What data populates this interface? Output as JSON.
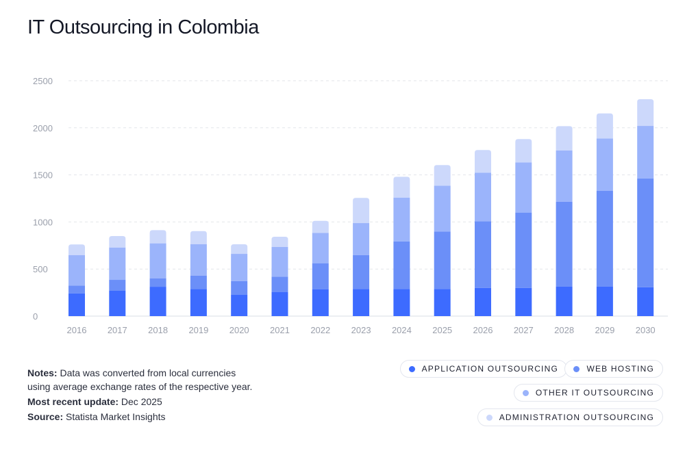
{
  "title": "IT Outsourcing in Colombia",
  "notes": {
    "notes_label": "Notes:",
    "notes_text": " Data was converted from local currencies",
    "notes_text2": "using average exchange rates of the respective year.",
    "update_label": "Most recent update:",
    "update_value": " Dec 2025",
    "source_label": "Source:",
    "source_value": " Statista Market Insights"
  },
  "chart_data": {
    "type": "bar",
    "stacked": true,
    "title": "IT Outsourcing in Colombia",
    "xlabel": "",
    "ylabel": "",
    "ylim": [
      0,
      2500
    ],
    "yticks": [
      0,
      500,
      1000,
      1500,
      2000,
      2500
    ],
    "grid": true,
    "legend_position": "bottom-right",
    "categories": [
      "2016",
      "2017",
      "2018",
      "2019",
      "2020",
      "2021",
      "2022",
      "2023",
      "2024",
      "2025",
      "2026",
      "2027",
      "2028",
      "2029",
      "2030"
    ],
    "series": [
      {
        "name": "APPLICATION OUTSOURCING",
        "color": "#3d6bff",
        "values": [
          242,
          269,
          312,
          288,
          228,
          257,
          286,
          288,
          288,
          288,
          300,
          300,
          315,
          315,
          307
        ]
      },
      {
        "name": "WEB HOSTING",
        "color": "#6b8ff8",
        "values": [
          83,
          116,
          90,
          143,
          143,
          162,
          276,
          361,
          506,
          611,
          708,
          800,
          899,
          1015,
          1156
        ]
      },
      {
        "name": "OTHER IT OUTSOURCING",
        "color": "#9bb4fb",
        "values": [
          324,
          344,
          371,
          334,
          290,
          315,
          322,
          339,
          465,
          487,
          516,
          533,
          545,
          557,
          557
        ]
      },
      {
        "name": "ADMINISTRATION OUTSOURCING",
        "color": "#ccd8fb",
        "values": [
          112,
          121,
          140,
          138,
          102,
          109,
          128,
          267,
          221,
          218,
          240,
          247,
          259,
          266,
          284
        ]
      }
    ]
  }
}
